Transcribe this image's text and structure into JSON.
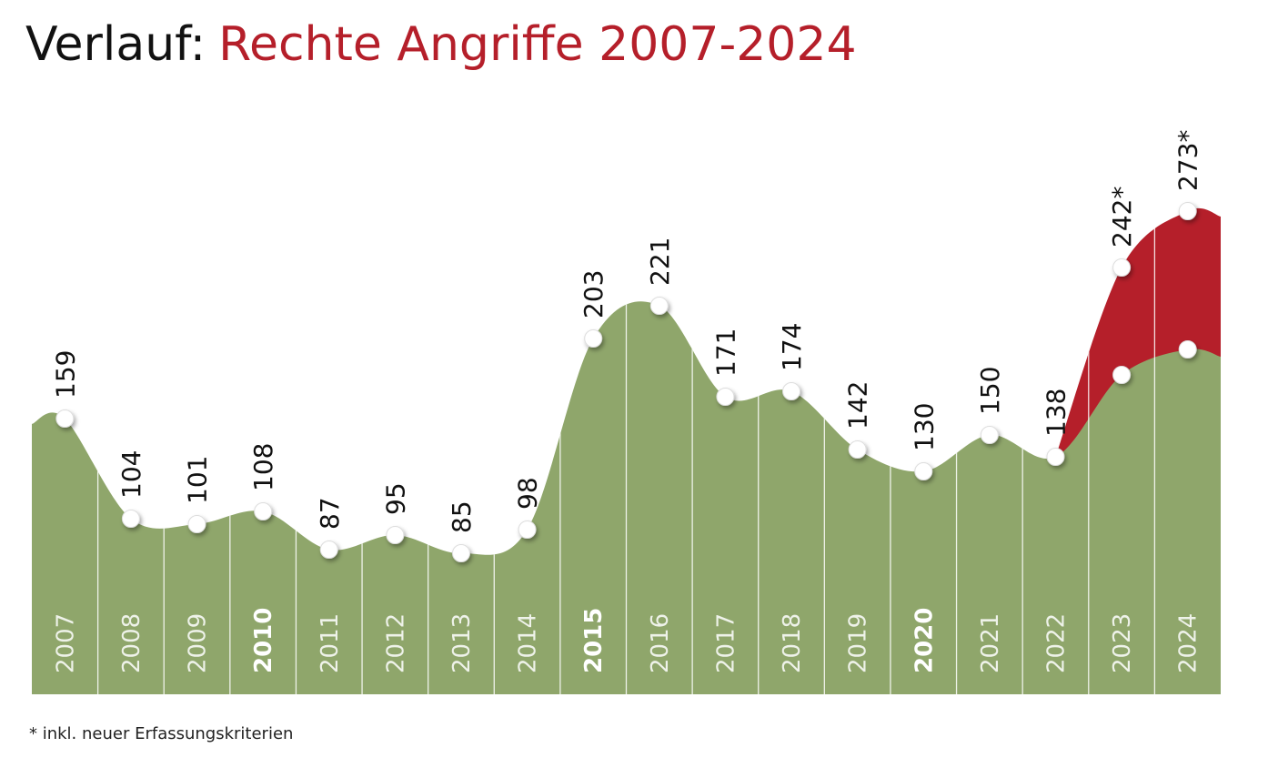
{
  "chart_data": {
    "type": "area",
    "title_lead": "Verlauf:",
    "title": "Rechte Angriffe 2007-2024",
    "note": "* inkl. neuer Erfassungskriterien",
    "categories": [
      "2007",
      "2008",
      "2009",
      "2010",
      "2011",
      "2012",
      "2013",
      "2014",
      "2015",
      "2016",
      "2017",
      "2018",
      "2019",
      "2020",
      "2021",
      "2022",
      "2023",
      "2024"
    ],
    "bold_categories": [
      "2010",
      "2015",
      "2020"
    ],
    "series": [
      {
        "color": "#8fa66b",
        "values": [
          159,
          104,
          101,
          108,
          87,
          95,
          85,
          98,
          203,
          221,
          171,
          174,
          142,
          130,
          150,
          138,
          183,
          197
        ],
        "value_labels": [
          "159",
          "104",
          "101",
          "108",
          "87",
          "95",
          "85",
          "98",
          "203",
          "221",
          "171",
          "174",
          "142",
          "130",
          "150",
          "138",
          null,
          null
        ]
      },
      {
        "color": "#b51f2a",
        "values": [
          null,
          null,
          null,
          null,
          null,
          null,
          null,
          null,
          null,
          null,
          null,
          null,
          null,
          null,
          null,
          null,
          242,
          273
        ],
        "value_labels": [
          null,
          null,
          null,
          null,
          null,
          null,
          null,
          null,
          null,
          null,
          null,
          null,
          null,
          null,
          null,
          null,
          "242*",
          "273*"
        ]
      }
    ],
    "ylim": [
      0,
      300
    ]
  }
}
